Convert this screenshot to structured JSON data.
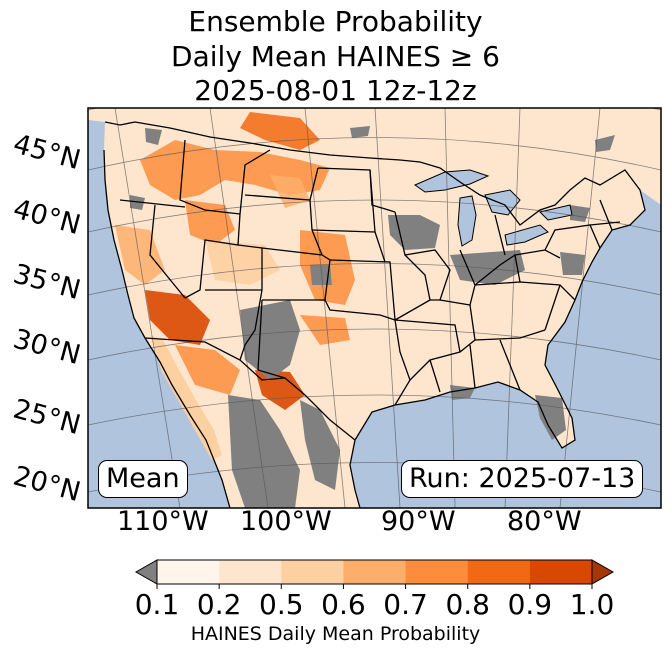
{
  "title": {
    "line1": "Ensemble Probability",
    "line2": "Daily Mean HAINES ≥ 6",
    "line3": "2025-08-01 12z-12z"
  },
  "map": {
    "projection": "Lambert conformal conic (CONUS)",
    "lat_labels": [
      "45°N",
      "40°N",
      "35°N",
      "30°N",
      "25°N",
      "20°N"
    ],
    "lon_labels": [
      "110°W",
      "100°W",
      "90°W",
      "80°W"
    ],
    "stat_box": "Mean",
    "run_box": "Run: 2025-07-13",
    "colors": {
      "ocean": "#b0c4de",
      "land": "#ffffff",
      "no_data_gray": "#808080",
      "lakes": "#b0c4de"
    }
  },
  "colorbar": {
    "label": "HAINES Daily Mean Probability",
    "ticks": [
      "0.1",
      "0.2",
      "0.5",
      "0.6",
      "0.7",
      "0.8",
      "0.9",
      "1.0"
    ],
    "bin_colors": [
      "#fff5eb",
      "#fee6ce",
      "#fdd0a2",
      "#fdae6b",
      "#fd8d3c",
      "#f16913",
      "#d94801"
    ],
    "under_color": "#808080",
    "over_color": "#a63603"
  }
}
